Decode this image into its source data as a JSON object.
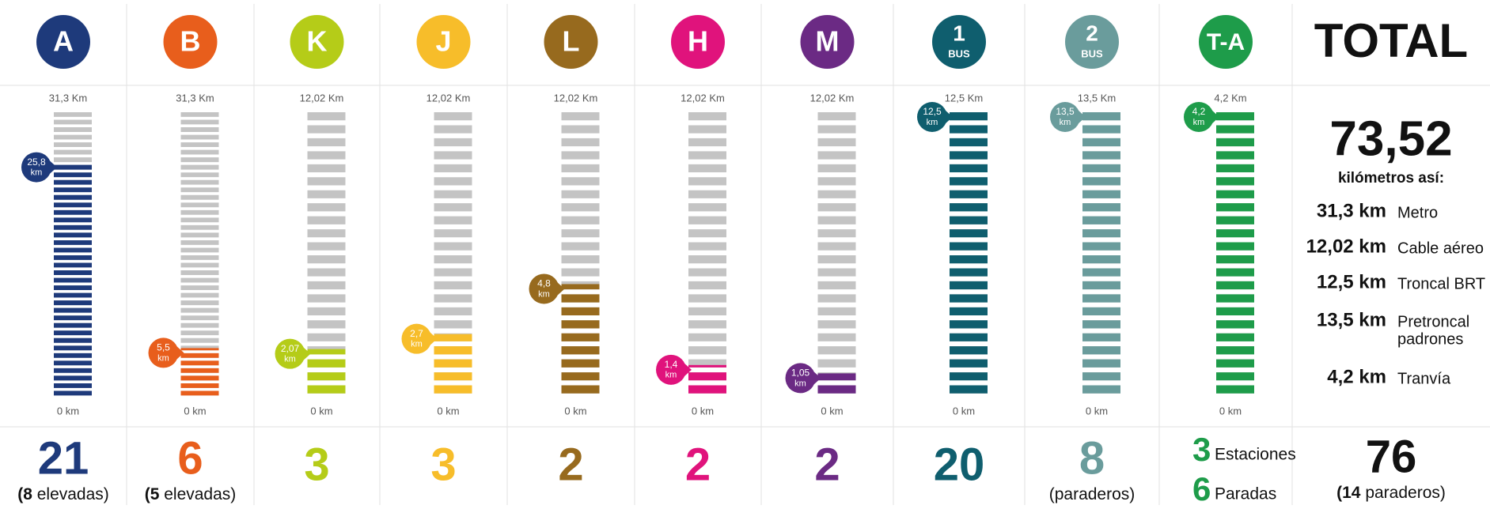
{
  "lines": [
    {
      "badge": {
        "text": "A"
      },
      "color": "#1e3a7b",
      "max": {
        "value": 31.3,
        "label": "31,3 Km"
      },
      "min": {
        "value": 0,
        "label": "0 km"
      },
      "value": {
        "value": 25.8,
        "label": "25,8",
        "unit": "km"
      },
      "count": "21",
      "sub_bold": "(8",
      "sub_text": " elevadas)"
    },
    {
      "badge": {
        "text": "B"
      },
      "color": "#e85e1c",
      "max": {
        "value": 31.3,
        "label": "31,3 Km"
      },
      "min": {
        "value": 0,
        "label": "0 km"
      },
      "value": {
        "value": 5.5,
        "label": "5,5",
        "unit": "km"
      },
      "count": "6",
      "sub_bold": "(5",
      "sub_text": " elevadas)"
    },
    {
      "badge": {
        "text": "K"
      },
      "color": "#b5cc18",
      "max": {
        "value": 12.02,
        "label": "12,02 Km"
      },
      "min": {
        "value": 0,
        "label": "0 km"
      },
      "value": {
        "value": 2.07,
        "label": "2,07",
        "unit": "km"
      },
      "count": "3"
    },
    {
      "badge": {
        "text": "J"
      },
      "color": "#f7bd2a",
      "max": {
        "value": 12.02,
        "label": "12,02 Km"
      },
      "min": {
        "value": 0,
        "label": "0 km"
      },
      "value": {
        "value": 2.7,
        "label": "2,7",
        "unit": "km"
      },
      "count": "3"
    },
    {
      "badge": {
        "text": "L"
      },
      "color": "#976a1e",
      "max": {
        "value": 12.02,
        "label": "12,02 Km"
      },
      "min": {
        "value": 0,
        "label": "0 km"
      },
      "value": {
        "value": 4.8,
        "label": "4,8",
        "unit": "km"
      },
      "count": "2"
    },
    {
      "badge": {
        "text": "H"
      },
      "color": "#e0137c",
      "max": {
        "value": 12.02,
        "label": "12,02 Km"
      },
      "min": {
        "value": 0,
        "label": "0 km"
      },
      "value": {
        "value": 1.4,
        "label": "1,4",
        "unit": "km"
      },
      "count": "2"
    },
    {
      "badge": {
        "text": "M"
      },
      "color": "#6b2a84",
      "max": {
        "value": 12.02,
        "label": "12,02 Km"
      },
      "min": {
        "value": 0,
        "label": "0 km"
      },
      "value": {
        "value": 1.05,
        "label": "1,05",
        "unit": "km"
      },
      "count": "2"
    },
    {
      "badge": {
        "text": "1",
        "sub": "BUS"
      },
      "color": "#0f5e6e",
      "max": {
        "value": 12.5,
        "label": "12,5 Km"
      },
      "min": {
        "value": 0,
        "label": "0 km"
      },
      "value": {
        "value": 12.5,
        "label": "12,5",
        "unit": "km"
      },
      "count": "20"
    },
    {
      "badge": {
        "text": "2",
        "sub": "BUS"
      },
      "color": "#6a9c9c",
      "max": {
        "value": 13.5,
        "label": "13,5 Km"
      },
      "min": {
        "value": 0,
        "label": "0 km"
      },
      "value": {
        "value": 13.5,
        "label": "13,5",
        "unit": "km"
      },
      "count": "8",
      "sub_text": "(paraderos)"
    },
    {
      "badge": {
        "text": "T-A"
      },
      "color": "#1e9c4a",
      "max": {
        "value": 4.2,
        "label": "4,2 Km"
      },
      "min": {
        "value": 0,
        "label": "0 km"
      },
      "value": {
        "value": 4.2,
        "label": "4,2",
        "unit": "km"
      },
      "counts": [
        {
          "n": "3",
          "label": "Estaciones"
        },
        {
          "n": "6",
          "label": "Paradas"
        }
      ]
    }
  ],
  "total": {
    "title": "TOTAL",
    "km": "73,52",
    "caption": "kilómetros así:",
    "rows": [
      {
        "km": "31,3 km",
        "name": [
          "Metro"
        ]
      },
      {
        "km": "12,02 km",
        "name": [
          "Cable aéreo"
        ]
      },
      {
        "km": "12,5 km",
        "name": [
          "Troncal BRT"
        ]
      },
      {
        "km": "13,5 km",
        "name": [
          "Pretroncal",
          "padrones"
        ]
      },
      {
        "km": "4,2 km",
        "name": [
          "Tranvía"
        ]
      }
    ],
    "count": "76",
    "sub_bold": "(14",
    "sub_text": " paraderos)"
  }
}
